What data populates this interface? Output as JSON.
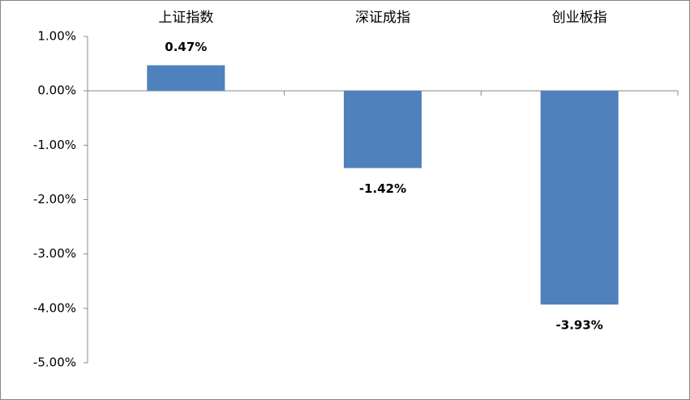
{
  "chart_data": {
    "type": "bar",
    "categories": [
      "上证指数",
      "深证成指",
      "创业板指"
    ],
    "values": [
      0.47,
      -1.42,
      -3.93
    ],
    "value_labels": [
      "0.47%",
      "-1.42%",
      "-3.93%"
    ],
    "color": "#4f81bd",
    "ylim": [
      -5,
      1
    ],
    "yticks": [
      {
        "value": 1,
        "label": "1.00%"
      },
      {
        "value": 0,
        "label": "0.00%"
      },
      {
        "value": -1,
        "label": "-1.00%"
      },
      {
        "value": -2,
        "label": "-2.00%"
      },
      {
        "value": -3,
        "label": "-3.00%"
      },
      {
        "value": -4,
        "label": "-4.00%"
      },
      {
        "value": -5,
        "label": "-5.00%"
      }
    ],
    "grid": false
  }
}
